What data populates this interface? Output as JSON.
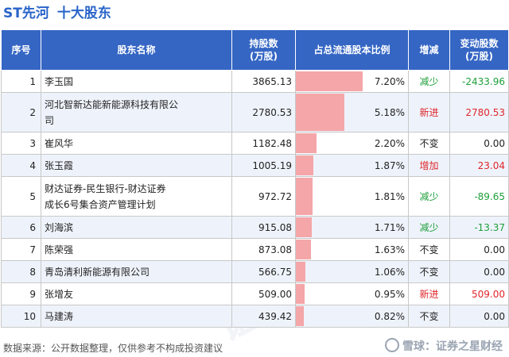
{
  "header": {
    "code": "ST先河",
    "title": "十大股东"
  },
  "table": {
    "columns": [
      "序号",
      "股东名称",
      "持股数\n(万股)",
      "占总流通股本比例",
      "增减",
      "变动股数\n(万股)"
    ],
    "rows": [
      {
        "rank": "1",
        "name": "李玉国",
        "shares": "3865.13",
        "ratio_label": "7.20%",
        "ratio": 7.2,
        "change": "减少",
        "change_type": "down",
        "delta": "-2433.96"
      },
      {
        "rank": "2",
        "name": "河北智新达能新能源科技有限公\n司",
        "shares": "2780.53",
        "ratio_label": "5.18%",
        "ratio": 5.18,
        "change": "新进",
        "change_type": "up",
        "delta": "2780.53",
        "tall": true
      },
      {
        "rank": "3",
        "name": "崔风华",
        "shares": "1182.48",
        "ratio_label": "2.20%",
        "ratio": 2.2,
        "change": "不变",
        "change_type": "none",
        "delta": "0.00"
      },
      {
        "rank": "4",
        "name": "张玉霞",
        "shares": "1005.19",
        "ratio_label": "1.87%",
        "ratio": 1.87,
        "change": "增加",
        "change_type": "up",
        "delta": "23.04"
      },
      {
        "rank": "5",
        "name": "财达证券-民生银行-财达证券\n成长6号集合资产管理计划",
        "shares": "972.72",
        "ratio_label": "1.81%",
        "ratio": 1.81,
        "change": "减少",
        "change_type": "down",
        "delta": "-89.65",
        "tall": true
      },
      {
        "rank": "6",
        "name": "刘海滨",
        "shares": "915.08",
        "ratio_label": "1.71%",
        "ratio": 1.71,
        "change": "减少",
        "change_type": "down",
        "delta": "-13.37"
      },
      {
        "rank": "7",
        "name": "陈荣强",
        "shares": "873.08",
        "ratio_label": "1.63%",
        "ratio": 1.63,
        "change": "不变",
        "change_type": "none",
        "delta": "0.00"
      },
      {
        "rank": "8",
        "name": "青岛清利新能源有限公司",
        "shares": "566.75",
        "ratio_label": "1.06%",
        "ratio": 1.06,
        "change": "不变",
        "change_type": "none",
        "delta": "0.00"
      },
      {
        "rank": "9",
        "name": "张增友",
        "shares": "509.00",
        "ratio_label": "0.95%",
        "ratio": 0.95,
        "change": "新进",
        "change_type": "up",
        "delta": "509.00"
      },
      {
        "rank": "10",
        "name": "马建涛",
        "shares": "439.42",
        "ratio_label": "0.82%",
        "ratio": 0.82,
        "change": "不变",
        "change_type": "none",
        "delta": "0.00"
      }
    ]
  },
  "footer": {
    "source": "数据来源：公开数据整理，仅供参考不构成投资建议",
    "brand": "雪球：证券之星财经"
  },
  "colors": {
    "header_bg": "#3566c4",
    "bar": "#f4a6a8",
    "down": "#1e9f3a",
    "up": "#e0262b"
  }
}
